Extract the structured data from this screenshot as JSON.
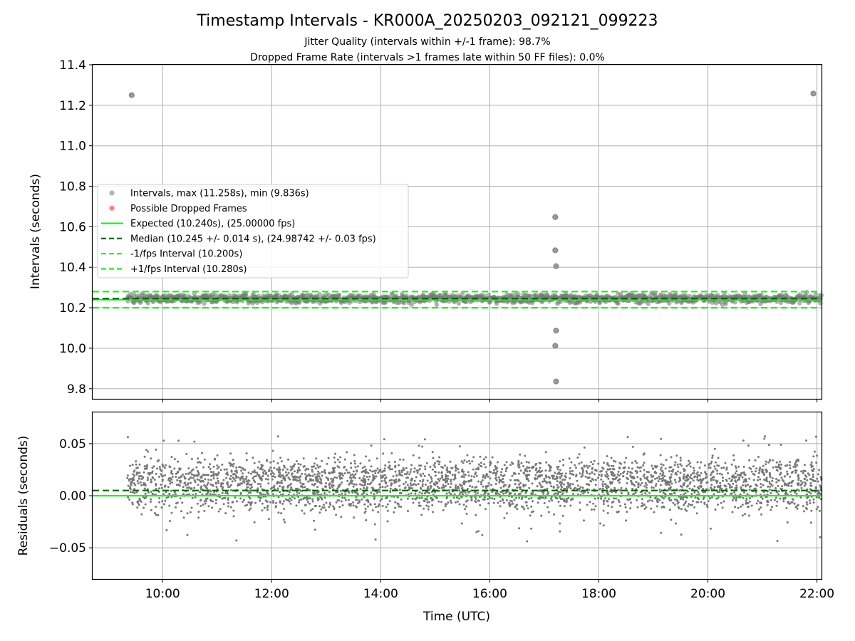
{
  "figure": {
    "title": "Timestamp Intervals - KR000A_20250203_092121_099223",
    "subtitle_1": "Jitter Quality (intervals within +/-1 frame): 98.7%",
    "subtitle_2": "Dropped Frame Rate (intervals >1 frames late within 50 FF files): 0.0%"
  },
  "chart_data": [
    {
      "type": "scatter",
      "panel": "intervals",
      "ylabel": "Intervals (seconds)",
      "ylim": [
        9.75,
        11.4
      ],
      "yticks": [
        9.8,
        10.0,
        10.2,
        10.4,
        10.6,
        10.8,
        11.0,
        11.2,
        11.4
      ],
      "ytick_labels": [
        "9.8",
        "10.0",
        "10.2",
        "10.4",
        "10.6",
        "10.8",
        "11.0",
        "11.2",
        "11.4"
      ],
      "xlim": [
        "08:43",
        "22:05"
      ],
      "grid": true,
      "legend_placement": "center-left",
      "time_span": {
        "start": "09:21",
        "end": "22:05"
      },
      "legend": [
        {
          "label": "Intervals, max (11.258s), min (9.836s)",
          "kind": "point",
          "color": "#999999"
        },
        {
          "label": "Possible Dropped Frames",
          "kind": "point",
          "color": "#ff5555"
        },
        {
          "label": "Expected (10.240s), (25.00000 fps)",
          "kind": "solid",
          "color": "#22ee22"
        },
        {
          "label": "Median (10.245 +/- 0.014 s), (24.98742 +/- 0.03 fps)",
          "kind": "dashed",
          "color": "#006400"
        },
        {
          "label": "-1/fps Interval (10.200s)",
          "kind": "dashed",
          "color": "#22ee22"
        },
        {
          "label": "+1/fps Interval (10.280s)",
          "kind": "dashed",
          "color": "#22ee22"
        }
      ],
      "reference_lines": [
        {
          "y": 10.24,
          "style": "solid",
          "color": "#22ee22"
        },
        {
          "y": 10.245,
          "style": "dashed",
          "color": "#006400"
        },
        {
          "y": 10.2,
          "style": "dashed",
          "color": "#22ee22"
        },
        {
          "y": 10.28,
          "style": "dashed",
          "color": "#22ee22"
        }
      ],
      "outliers": [
        {
          "t": "09:26",
          "y": 11.25
        },
        {
          "t": "21:56",
          "y": 11.258
        },
        {
          "t": "17:12",
          "y": 10.648
        },
        {
          "t": "17:12",
          "y": 10.484
        },
        {
          "t": "17:13",
          "y": 10.405
        },
        {
          "t": "17:13",
          "y": 10.087
        },
        {
          "t": "17:12",
          "y": 10.012
        },
        {
          "t": "17:13",
          "y": 9.836
        }
      ],
      "band": {
        "center": 10.245,
        "spread": 0.014,
        "color": "#777777"
      }
    },
    {
      "type": "scatter",
      "panel": "residuals",
      "xlabel": "Time (UTC)",
      "ylabel": "Residuals (seconds)",
      "ylim": [
        -0.08,
        0.08
      ],
      "yticks": [
        -0.05,
        0.0,
        0.05
      ],
      "ytick_labels": [
        "−0.05",
        "0.00",
        "0.05"
      ],
      "xlim": [
        "08:43",
        "22:05"
      ],
      "xticks": [
        "10:00",
        "12:00",
        "14:00",
        "16:00",
        "18:00",
        "20:00",
        "22:00"
      ],
      "xtick_labels": [
        "10:00",
        "12:00",
        "14:00",
        "16:00",
        "18:00",
        "20:00",
        "22:00"
      ],
      "grid": true,
      "reference_lines": [
        {
          "y": 0.0,
          "style": "solid",
          "color": "#22ee22"
        },
        {
          "y": 0.005,
          "style": "dashed",
          "color": "#006400"
        }
      ],
      "distribution": {
        "modes": [
          0.0,
          0.02
        ],
        "spread": 0.008,
        "min": -0.045,
        "max": 0.058,
        "color": "#777777"
      }
    }
  ]
}
